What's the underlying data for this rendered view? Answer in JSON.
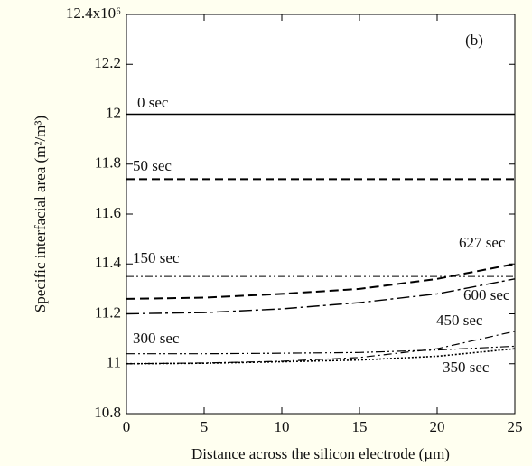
{
  "chart_data": {
    "type": "line",
    "annotation": "(b)",
    "x_label": "Distance across the silicon electrode (µm)",
    "y_label": "Specific interfacial area (m²/m³)",
    "x": [
      0,
      5,
      10,
      15,
      20,
      25
    ],
    "xlim": [
      0,
      25
    ],
    "xticks": [
      0,
      5,
      10,
      15,
      20,
      25
    ],
    "ylim": [
      10.8,
      12.4
    ],
    "yticks": [
      10.8,
      11.0,
      11.2,
      11.4,
      11.6,
      11.8,
      12.0,
      12.2,
      {
        "value": 12.4,
        "label": "12.4x10⁶"
      }
    ],
    "series": [
      {
        "name": "0 sec",
        "color": "#000000",
        "values": [
          12.0,
          12.0,
          12.0,
          12.0,
          12.0,
          12.0
        ]
      },
      {
        "name": "50 sec",
        "color": "#000000",
        "values": [
          11.74,
          11.74,
          11.74,
          11.74,
          11.74,
          11.74
        ]
      },
      {
        "name": "150 sec",
        "color": "#000000",
        "values": [
          11.35,
          11.35,
          11.35,
          11.35,
          11.35,
          11.35
        ]
      },
      {
        "name": "627 sec",
        "color": "#000000",
        "values": [
          11.26,
          11.265,
          11.28,
          11.3,
          11.34,
          11.4
        ]
      },
      {
        "name": "600 sec",
        "color": "#000000",
        "values": [
          11.2,
          11.205,
          11.22,
          11.245,
          11.28,
          11.34
        ]
      },
      {
        "name": "300 sec",
        "color": "#000000",
        "values": [
          11.04,
          11.04,
          11.042,
          11.045,
          11.055,
          11.07
        ]
      },
      {
        "name": "450 sec",
        "color": "#000000",
        "values": [
          11.0,
          11.003,
          11.01,
          11.025,
          11.06,
          11.13
        ]
      },
      {
        "name": "350 sec",
        "color": "#000000",
        "values": [
          11.0,
          11.002,
          11.008,
          11.015,
          11.03,
          11.06
        ]
      }
    ]
  }
}
